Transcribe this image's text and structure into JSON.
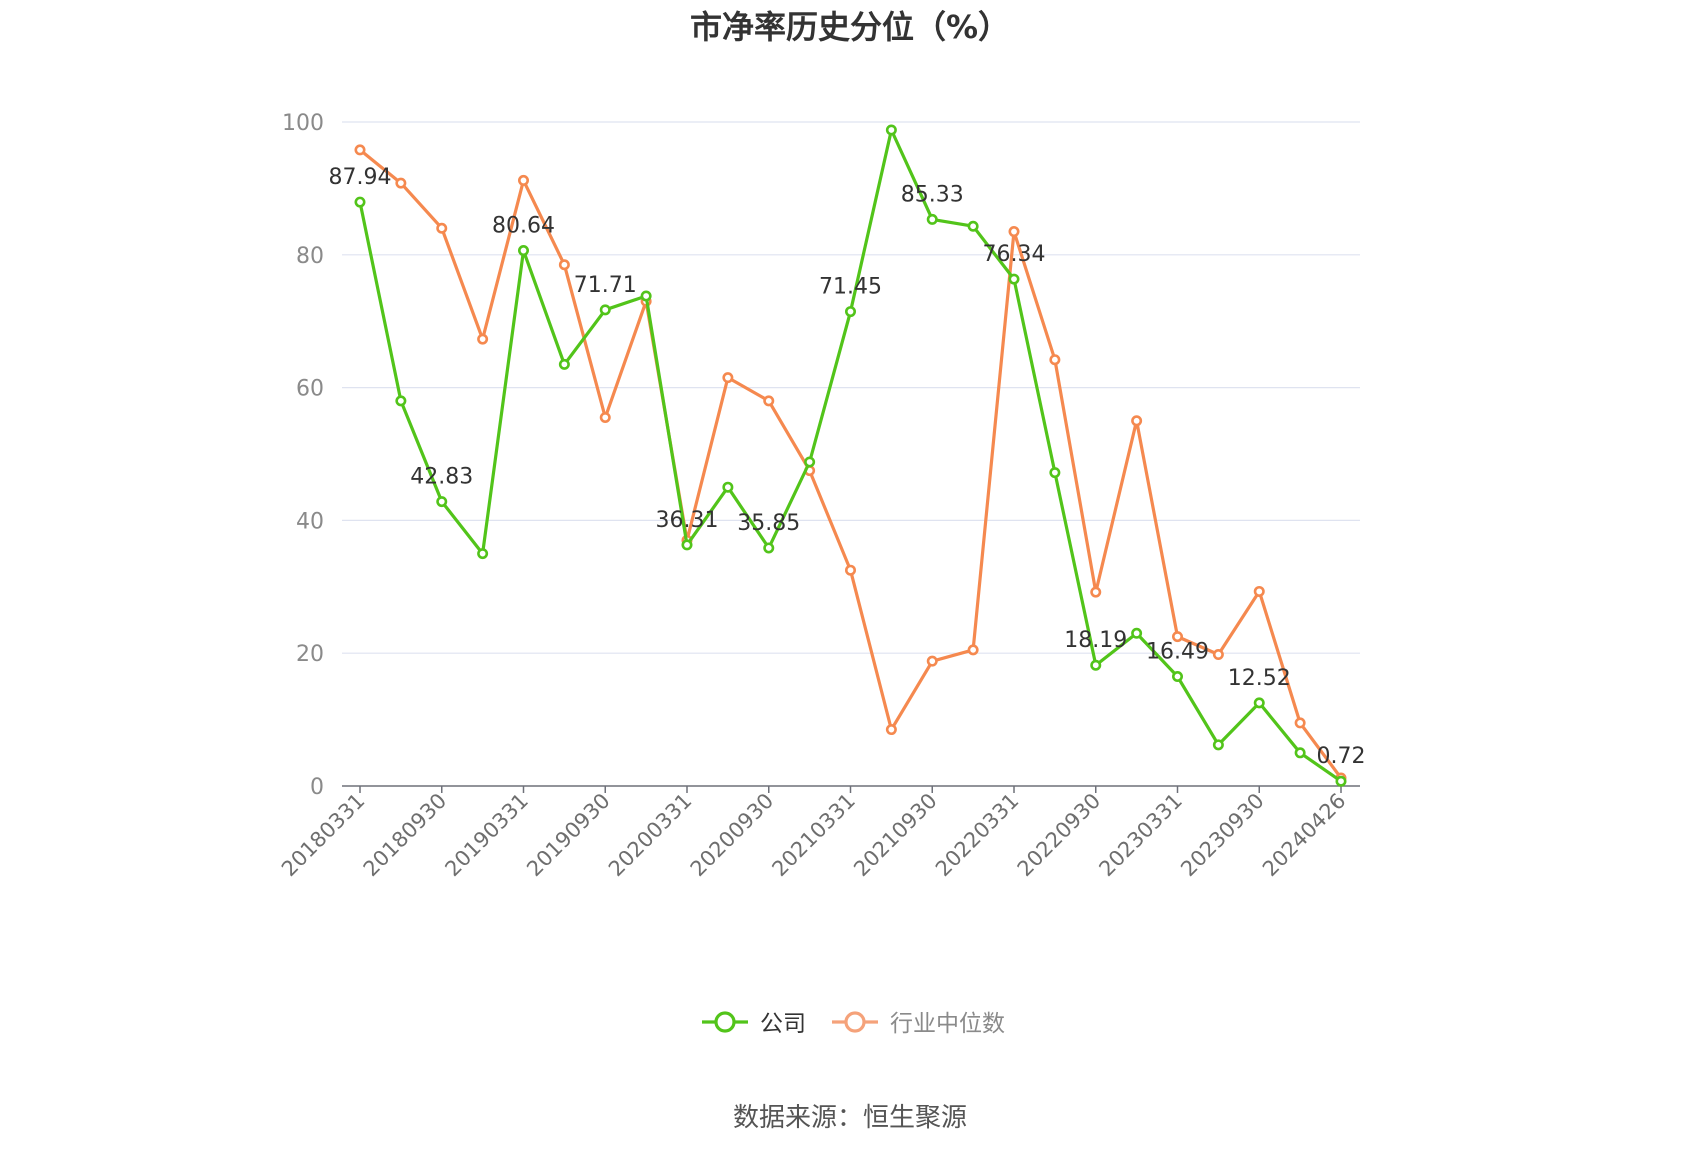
{
  "chart_data": {
    "type": "line",
    "title": "市净率历史分位（%）",
    "xlabel": "",
    "ylabel": "",
    "ylim": [
      0,
      100
    ],
    "yticks": [
      0,
      20,
      40,
      60,
      80,
      100
    ],
    "grid": true,
    "legend_position": "bottom-center",
    "x": [
      "20180331",
      "20180630",
      "20180930",
      "20181231",
      "20190331",
      "20190630",
      "20190930",
      "20191231",
      "20200331",
      "20200630",
      "20200930",
      "20201231",
      "20210331",
      "20210630",
      "20210930",
      "20211231",
      "20220331",
      "20220630",
      "20220930",
      "20221231",
      "20230331",
      "20230630",
      "20230930",
      "20231231",
      "20240426"
    ],
    "x_tick_labels": [
      "20180331",
      "20180930",
      "20190331",
      "20190930",
      "20200331",
      "20200930",
      "20210331",
      "20210930",
      "20220331",
      "20220930",
      "20230331",
      "20230930",
      "20240426"
    ],
    "series": [
      {
        "name": "公司",
        "color": "#52c41a",
        "values": [
          87.94,
          58.0,
          42.83,
          35.0,
          80.64,
          63.5,
          71.71,
          73.8,
          36.31,
          45.0,
          35.85,
          48.8,
          71.45,
          98.8,
          85.33,
          84.3,
          76.34,
          47.2,
          18.19,
          23.0,
          16.49,
          6.2,
          12.52,
          5.0,
          0.72
        ],
        "labels": [
          "87.94",
          "",
          "42.83",
          "",
          "80.64",
          "",
          "71.71",
          "",
          "36.31",
          "",
          "35.85",
          "",
          "71.45",
          "",
          "85.33",
          "",
          "76.34",
          "",
          "18.19",
          "",
          "16.49",
          "",
          "12.52",
          "",
          "0.72"
        ]
      },
      {
        "name": "行业中位数",
        "color": "#f5894f",
        "values": [
          95.8,
          90.8,
          84.0,
          67.3,
          91.2,
          78.5,
          55.5,
          73.0,
          37.0,
          61.5,
          58.0,
          47.5,
          32.5,
          8.5,
          18.8,
          20.5,
          83.5,
          64.2,
          29.2,
          55.0,
          22.5,
          19.8,
          29.3,
          9.5,
          1.2
        ]
      }
    ]
  },
  "legend": {
    "items": [
      {
        "label": "公司",
        "color": "#52c41a",
        "text_color": "#333333"
      },
      {
        "label": "行业中位数",
        "color": "#f5a27a",
        "text_color": "#8a8a8a"
      }
    ]
  },
  "source": "数据来源：恒生聚源"
}
